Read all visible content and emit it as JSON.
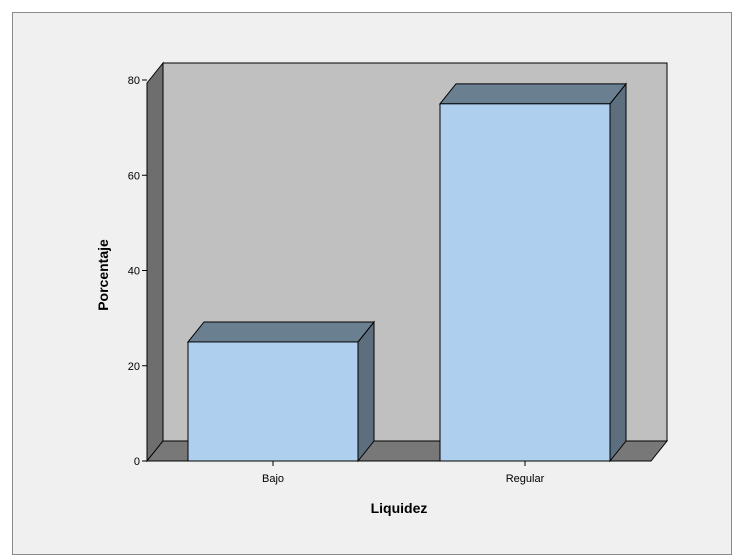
{
  "chart_data": {
    "type": "bar",
    "categories": [
      "Bajo",
      "Regular"
    ],
    "values": [
      25,
      75
    ],
    "xlabel": "Liquidez",
    "ylabel": "Porcentaje",
    "ylim": [
      0,
      87
    ],
    "yticks": [
      "0",
      "20",
      "40",
      "60",
      "80"
    ],
    "grid": false,
    "colors": {
      "bar_front": "#aecfee",
      "bar_top": "#6a7f90",
      "bar_side": "#5d6f7f",
      "plot_back": "#c0c0c0",
      "plot_left_wall": "#6e6e6e",
      "plot_floor": "#787878",
      "outer_background": "#f0f0f0"
    }
  }
}
